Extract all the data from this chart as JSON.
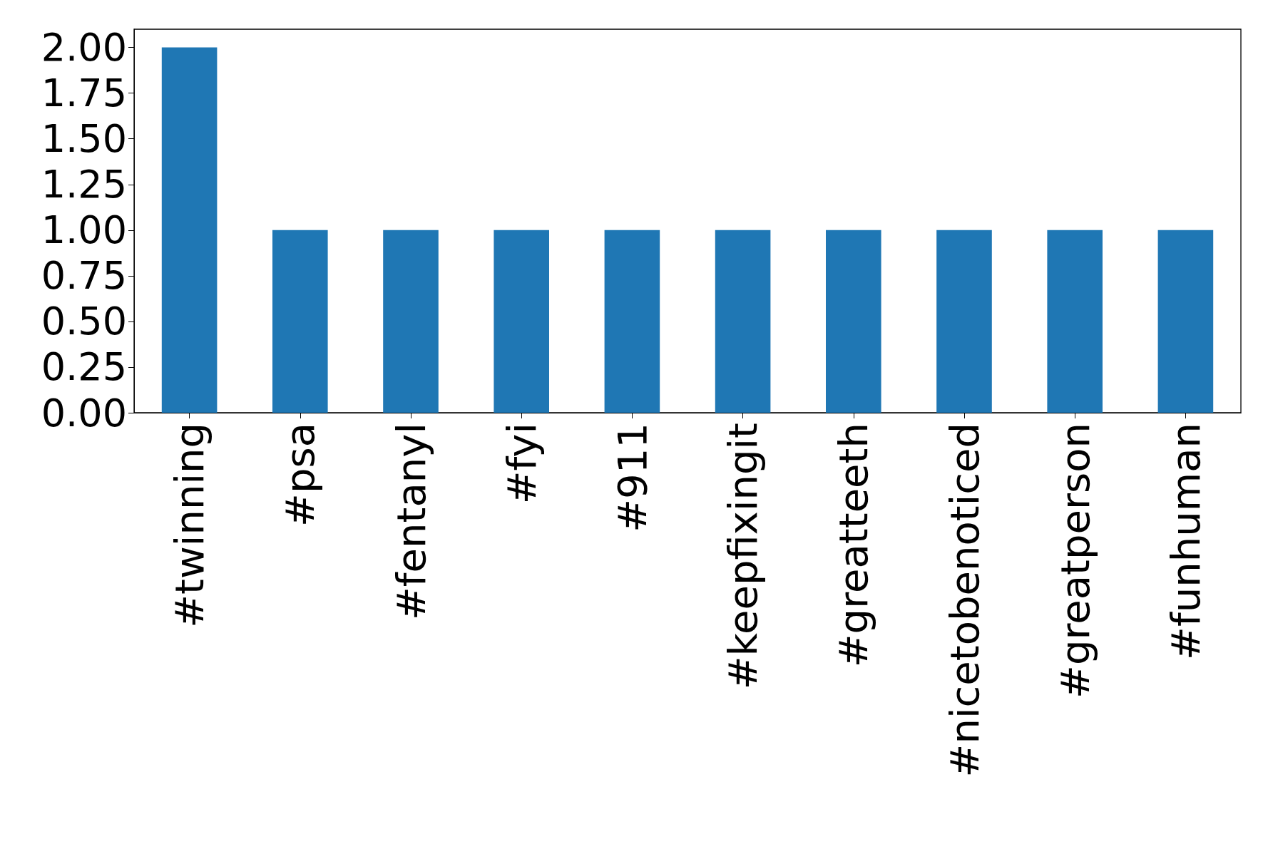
{
  "chart_data": {
    "type": "bar",
    "categories": [
      "#twinning",
      "#psa",
      "#fentanyl",
      "#fyi",
      "#911",
      "#keepfixingit",
      "#greatteeth",
      "#nicetobenoticed",
      "#greatperson",
      "#funhuman"
    ],
    "values": [
      2,
      1,
      1,
      1,
      1,
      1,
      1,
      1,
      1,
      1
    ],
    "color": "#1f77b4",
    "ylim": [
      0,
      2.1
    ],
    "yticks": [
      {
        "value": 0,
        "label": "0.00"
      },
      {
        "value": 0.25,
        "label": "0.25"
      },
      {
        "value": 0.5,
        "label": "0.50"
      },
      {
        "value": 0.75,
        "label": "0.75"
      },
      {
        "value": 1,
        "label": "1.00"
      },
      {
        "value": 1.25,
        "label": "1.25"
      },
      {
        "value": 1.5,
        "label": "1.50"
      },
      {
        "value": 1.75,
        "label": "1.75"
      },
      {
        "value": 2,
        "label": "2.00"
      }
    ],
    "grid": false
  }
}
